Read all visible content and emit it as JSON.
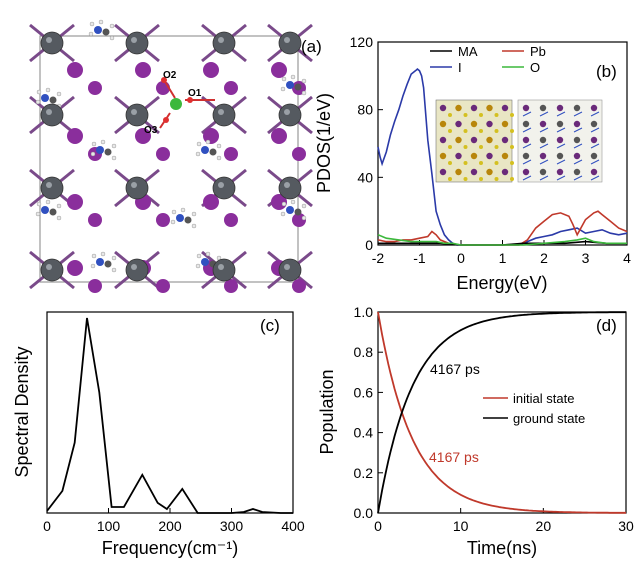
{
  "colors": {
    "MA": "#000000",
    "Pb": "#c0392b",
    "I": "#2b3aa8",
    "O": "#3cb83c",
    "pb_atom": "#555a60",
    "i_atom": "#8a2e9c",
    "n_atom": "#3050c0",
    "decay": "#c0392b",
    "growth": "#000000"
  },
  "panel_a": {
    "label": "(a)",
    "atom_labels": [
      "O1",
      "O2",
      "O3"
    ]
  },
  "chart_data": [
    {
      "type": "line",
      "panel": "(b)",
      "xlabel": "Energy(eV)",
      "ylabel": "PDOS(1/eV)",
      "xlim": [
        -2,
        4
      ],
      "ylim": [
        0,
        120
      ],
      "xticks": [
        "-2",
        "-1",
        "0",
        "1",
        "2",
        "3",
        "4"
      ],
      "yticks": [
        "0",
        "40",
        "80",
        "120"
      ],
      "legend": [
        "MA",
        "Pb",
        "I",
        "O"
      ],
      "legend_position": "top",
      "series": [
        {
          "name": "I",
          "x": [
            -2,
            -1.95,
            -1.9,
            -1.8,
            -1.7,
            -1.6,
            -1.5,
            -1.4,
            -1.3,
            -1.2,
            -1.1,
            -1.05,
            -1.0,
            -0.95,
            -0.9,
            -0.8,
            -0.7,
            -0.6,
            -0.5,
            -0.4,
            -0.3,
            -0.2,
            -0.1,
            0,
            0.2,
            0.5,
            1.0,
            1.4,
            1.5,
            1.6,
            1.8,
            2.0,
            2.2,
            2.4,
            2.6,
            2.8,
            3.0,
            3.2,
            3.4,
            3.6,
            3.8,
            4.0
          ],
          "y": [
            58,
            52,
            48,
            55,
            65,
            73,
            80,
            88,
            95,
            101,
            103,
            104,
            103,
            100,
            93,
            62,
            42,
            20,
            12,
            6,
            3,
            1,
            0,
            0,
            0,
            0,
            0,
            0,
            1,
            2,
            4,
            5,
            6,
            8,
            9,
            10,
            7,
            8,
            9,
            7,
            6,
            7
          ]
        },
        {
          "name": "Pb",
          "x": [
            -2,
            -1.8,
            -1.6,
            -1.4,
            -1.2,
            -1.0,
            -0.8,
            -0.7,
            -0.6,
            -0.5,
            -0.3,
            0,
            0.5,
            1.0,
            1.4,
            1.6,
            1.8,
            2.0,
            2.2,
            2.4,
            2.6,
            2.7,
            2.8,
            3.0,
            3.2,
            3.3,
            3.4,
            3.6,
            3.8,
            4.0
          ],
          "y": [
            3,
            2,
            2,
            3,
            3,
            4,
            5,
            8,
            6,
            3,
            1,
            0,
            0,
            0,
            0,
            3,
            10,
            14,
            18,
            19,
            17,
            12,
            6,
            15,
            19,
            20,
            18,
            14,
            10,
            8
          ]
        },
        {
          "name": "MA",
          "x": [
            -2,
            -1.5,
            -1,
            -0.5,
            0,
            0.5,
            1,
            1.5,
            2,
            2.5,
            3,
            3.5,
            4
          ],
          "y": [
            1,
            1,
            1,
            1,
            0,
            0,
            0,
            1,
            1,
            1,
            2,
            1,
            1
          ]
        },
        {
          "name": "O",
          "x": [
            -2,
            -1.8,
            -1.5,
            -1.2,
            -1,
            -0.8,
            -0.6,
            -0.4,
            -0.2,
            0,
            0.5,
            1,
            1.5,
            2,
            2.5,
            2.8,
            3,
            3.2,
            3.5,
            4
          ],
          "y": [
            6,
            4,
            3,
            2,
            2,
            2,
            2,
            1,
            1,
            0,
            0,
            0,
            0,
            1,
            2,
            3,
            4,
            2,
            1,
            1
          ]
        }
      ]
    },
    {
      "type": "line",
      "panel": "(c)",
      "xlabel": "Frequency(cm⁻¹)",
      "ylabel": "Spectral Density",
      "xlim": [
        0,
        400
      ],
      "xticks": [
        "0",
        "100",
        "200",
        "300",
        "400"
      ],
      "series": [
        {
          "x": [
            0,
            25,
            45,
            65,
            85,
            105,
            125,
            155,
            180,
            195,
            220,
            245,
            280,
            300,
            320,
            335,
            350,
            380,
            400
          ],
          "y": [
            0.01,
            0.11,
            0.35,
            0.97,
            0.6,
            0.03,
            0.03,
            0.19,
            0.05,
            0.02,
            0.12,
            0.0,
            0.0,
            0.0,
            0.005,
            0.02,
            0.005,
            0.0,
            0.0
          ]
        }
      ]
    },
    {
      "type": "line",
      "panel": "(d)",
      "xlabel": "Time(ns)",
      "ylabel": "Population",
      "xlim": [
        0,
        30
      ],
      "ylim": [
        0,
        1.0
      ],
      "xticks": [
        "0",
        "10",
        "20",
        "30"
      ],
      "yticks": [
        "0.0",
        "0.2",
        "0.4",
        "0.6",
        "0.8",
        "1.0"
      ],
      "legend": [
        "initial state",
        "ground state"
      ],
      "legend_position": "center-right",
      "annotations": [
        "4167 ps",
        "4167 ps"
      ],
      "series": [
        {
          "name": "initial state",
          "tau_ns": 4.167,
          "decay": true
        },
        {
          "name": "ground state",
          "tau_ns": 4.167,
          "decay": false
        }
      ]
    }
  ]
}
